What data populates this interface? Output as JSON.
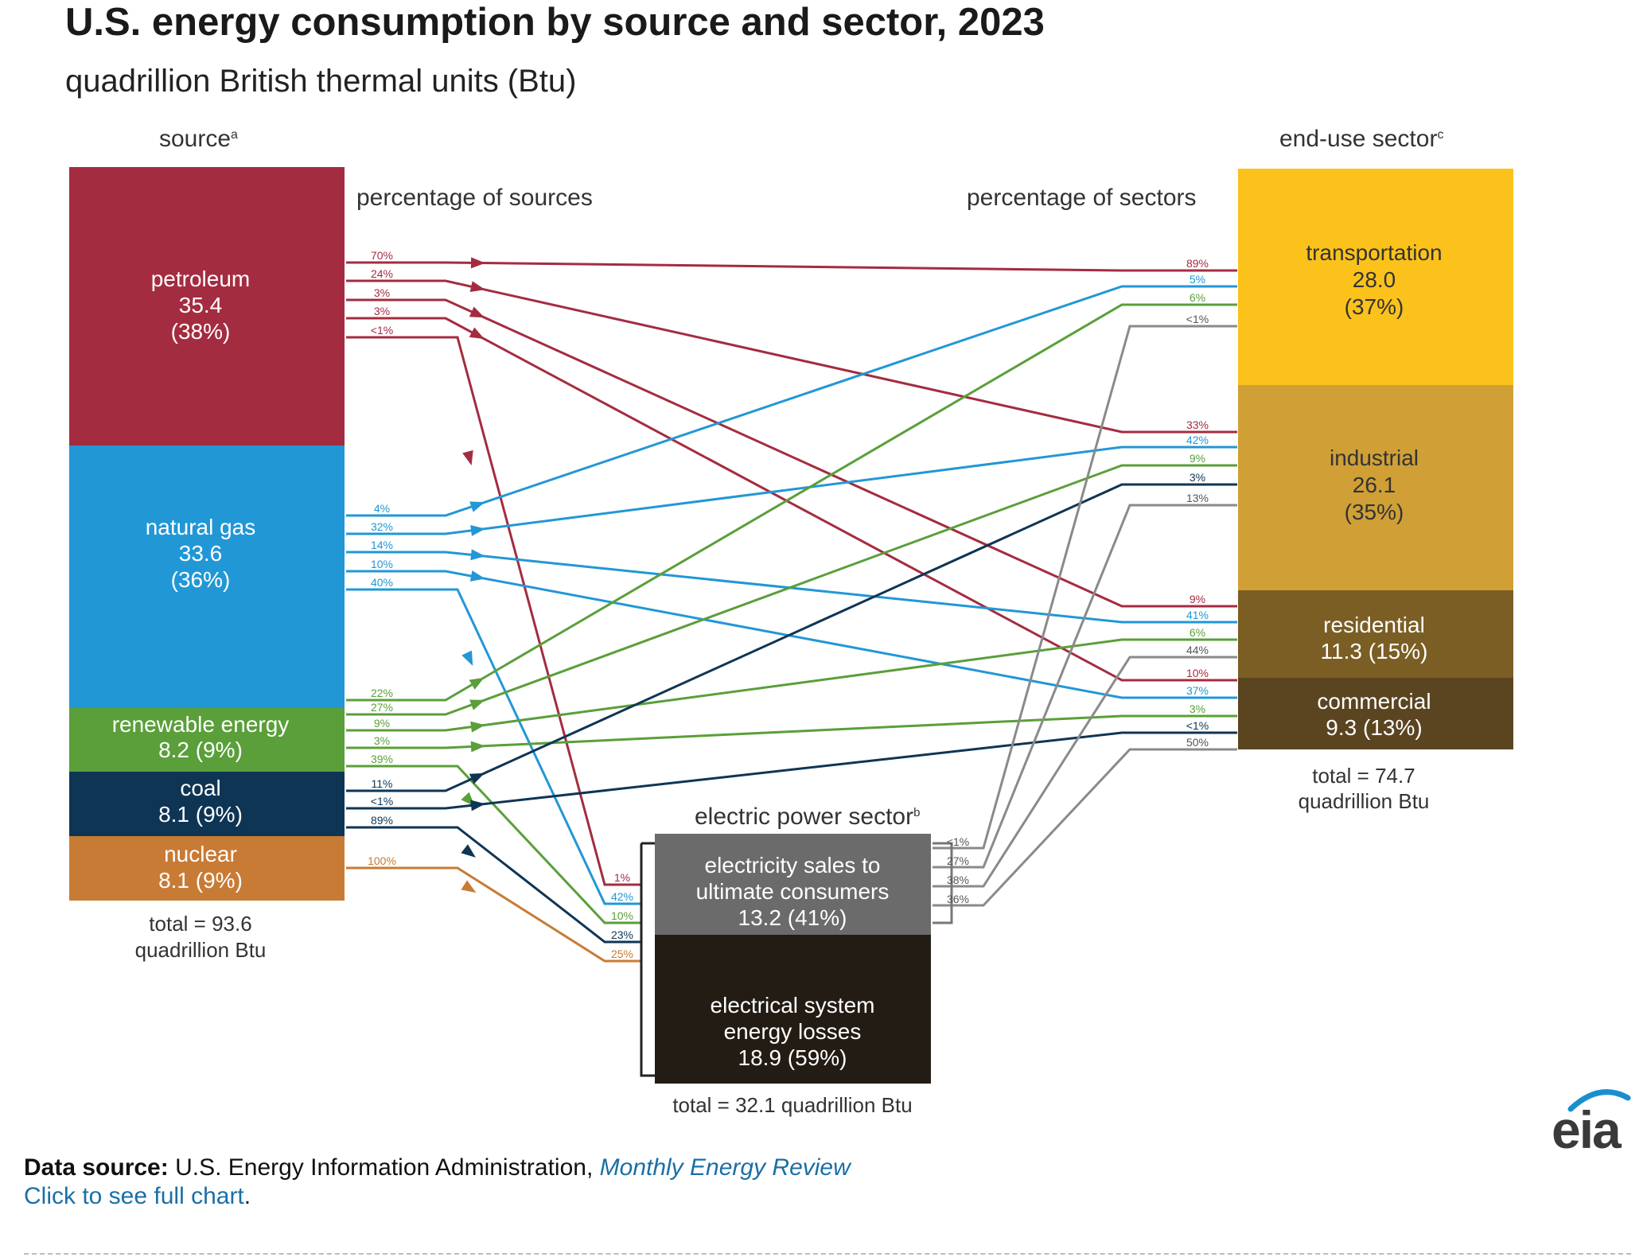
{
  "title": "U.S. energy consumption by source and sector, 2023",
  "subtitle": "quadrillion British thermal units (Btu)",
  "headers": {
    "source": "source",
    "source_sup": "a",
    "percentage_of_sources": "percentage of sources",
    "percentage_of_sectors": "percentage of sectors",
    "end_use": "end-use sector",
    "end_use_sup": "c",
    "electric": "electric power sector",
    "electric_sup": "b"
  },
  "colors": {
    "petroleum": "#a42c40",
    "natural_gas": "#2297d6",
    "renewable": "#5a9f3a",
    "coal": "#0f3554",
    "nuclear": "#c87b35",
    "transportation": "#fbc21b",
    "industrial": "#d0a036",
    "residential": "#7b5e24",
    "commercial": "#5b4521",
    "electricity_sales": "#6b6b6b",
    "electrical_losses": "#221c14",
    "gray_line": "#8a8a8a"
  },
  "sources": {
    "petroleum": {
      "name": "petroleum",
      "value": "35.4",
      "share": "(38%)"
    },
    "natural_gas": {
      "name": "natural gas",
      "value": "33.6",
      "share": "(36%)"
    },
    "renewable": {
      "name": "renewable energy",
      "value_share": "8.2 (9%)"
    },
    "coal": {
      "name": "coal",
      "value_share": "8.1 (9%)"
    },
    "nuclear": {
      "name": "nuclear",
      "value_share": "8.1 (9%)"
    },
    "total_line1": "total = 93.6",
    "total_line2": "quadrillion Btu"
  },
  "sectors": {
    "transportation": {
      "name": "transportation",
      "value": "28.0",
      "share": "(37%)"
    },
    "industrial": {
      "name": "industrial",
      "value": "26.1",
      "share": "(35%)"
    },
    "residential": {
      "name": "residential",
      "value_share": "11.3 (15%)"
    },
    "commercial": {
      "name": "commercial",
      "value_share": "9.3 (13%)"
    },
    "total_line1": "total = 74.7",
    "total_line2": "quadrillion Btu"
  },
  "electric_power": {
    "sales_line1": "electricity sales to",
    "sales_line2": "ultimate consumers",
    "sales_value": "13.2 (41%)",
    "losses_line1": "electrical system",
    "losses_line2": "energy losses",
    "losses_value": "18.9 (59%)",
    "total": "total = 32.1 quadrillion Btu"
  },
  "flows": [
    {
      "from": "petroleum",
      "to": "transportation",
      "src_pct": "70%",
      "dst_pct": "89%"
    },
    {
      "from": "petroleum",
      "to": "industrial",
      "src_pct": "24%",
      "dst_pct": "33%"
    },
    {
      "from": "petroleum",
      "to": "residential",
      "src_pct": "3%",
      "dst_pct": "9%"
    },
    {
      "from": "petroleum",
      "to": "commercial",
      "src_pct": "3%",
      "dst_pct": "10%"
    },
    {
      "from": "petroleum",
      "to": "electric",
      "src_pct": "<1%",
      "dst_pct": "1%"
    },
    {
      "from": "natural_gas",
      "to": "transportation",
      "src_pct": "4%",
      "dst_pct": "5%"
    },
    {
      "from": "natural_gas",
      "to": "industrial",
      "src_pct": "32%",
      "dst_pct": "42%"
    },
    {
      "from": "natural_gas",
      "to": "residential",
      "src_pct": "14%",
      "dst_pct": "41%"
    },
    {
      "from": "natural_gas",
      "to": "commercial",
      "src_pct": "10%",
      "dst_pct": "37%"
    },
    {
      "from": "natural_gas",
      "to": "electric",
      "src_pct": "40%",
      "dst_pct": "42%"
    },
    {
      "from": "renewable",
      "to": "transportation",
      "src_pct": "22%",
      "dst_pct": "6%"
    },
    {
      "from": "renewable",
      "to": "industrial",
      "src_pct": "27%",
      "dst_pct": "9%"
    },
    {
      "from": "renewable",
      "to": "residential",
      "src_pct": "9%",
      "dst_pct": "6%"
    },
    {
      "from": "renewable",
      "to": "commercial",
      "src_pct": "3%",
      "dst_pct": "3%"
    },
    {
      "from": "renewable",
      "to": "electric",
      "src_pct": "39%",
      "dst_pct": "10%"
    },
    {
      "from": "coal",
      "to": "industrial",
      "src_pct": "11%",
      "dst_pct": "3%"
    },
    {
      "from": "coal",
      "to": "commercial",
      "src_pct": "<1%",
      "dst_pct": "<1%"
    },
    {
      "from": "coal",
      "to": "electric",
      "src_pct": "89%",
      "dst_pct": "23%"
    },
    {
      "from": "nuclear",
      "to": "electric",
      "src_pct": "100%",
      "dst_pct": "25%"
    },
    {
      "from": "electricity_sales",
      "to": "transportation",
      "src_pct": "<1%",
      "dst_pct": "<1%"
    },
    {
      "from": "electricity_sales",
      "to": "industrial",
      "src_pct": "27%",
      "dst_pct": "13%"
    },
    {
      "from": "electricity_sales",
      "to": "residential",
      "src_pct": "38%",
      "dst_pct": "44%"
    },
    {
      "from": "electricity_sales",
      "to": "commercial",
      "src_pct": "36%",
      "dst_pct": "50%"
    }
  ],
  "footer": {
    "data_source_label": "Data source:",
    "data_source_text": " U.S. Energy Information Administration, ",
    "data_source_link": "Monthly Energy Review",
    "click_link": "Click to see full chart",
    "click_period": "."
  },
  "logo": {
    "text": "eia"
  }
}
